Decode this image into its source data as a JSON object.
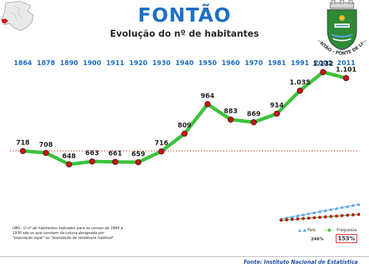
{
  "header": {
    "title": "FONTÃO",
    "subtitle": "Evolução do nº de habitantes"
  },
  "coat_of_arms": {
    "motto": "FONTÃO - PONTE DE LIMA"
  },
  "chart_data": {
    "type": "line",
    "categories": [
      "1864",
      "1878",
      "1890",
      "1900",
      "1911",
      "1920",
      "1930",
      "1940",
      "1950",
      "1960",
      "1970",
      "1981",
      "1991",
      "2001",
      "2011"
    ],
    "values": [
      718,
      708,
      648,
      663,
      661,
      659,
      716,
      809,
      964,
      883,
      869,
      914,
      1035,
      1132,
      1101
    ],
    "value_labels": [
      "718",
      "708",
      "648",
      "663",
      "661",
      "659",
      "716",
      "809",
      "964",
      "883",
      "869",
      "914",
      "1.035",
      "1.132",
      "1.101"
    ],
    "reference_line": 718,
    "ylim": [
      420,
      1220
    ],
    "line_color": "#3bc33b",
    "marker_color": "#c0171c",
    "reference_color": "#e0474b"
  },
  "inset": {
    "legend_pais": "País",
    "legend_freguesia": "Freguesia",
    "pct_pais": "246%",
    "pct_freguesia": "153%",
    "pais_color": "#5aa0e0",
    "freguesia_color": "#c0171c"
  },
  "obs_note": "OBS.: O nº de habitantes indicados para os censos de 1864 a 1930 são os que constam da coluna designada por \"população legal\" ou \"população de residência habitual\"",
  "footer": {
    "source": "Fonte: Instituto Nacional de Estatística"
  }
}
